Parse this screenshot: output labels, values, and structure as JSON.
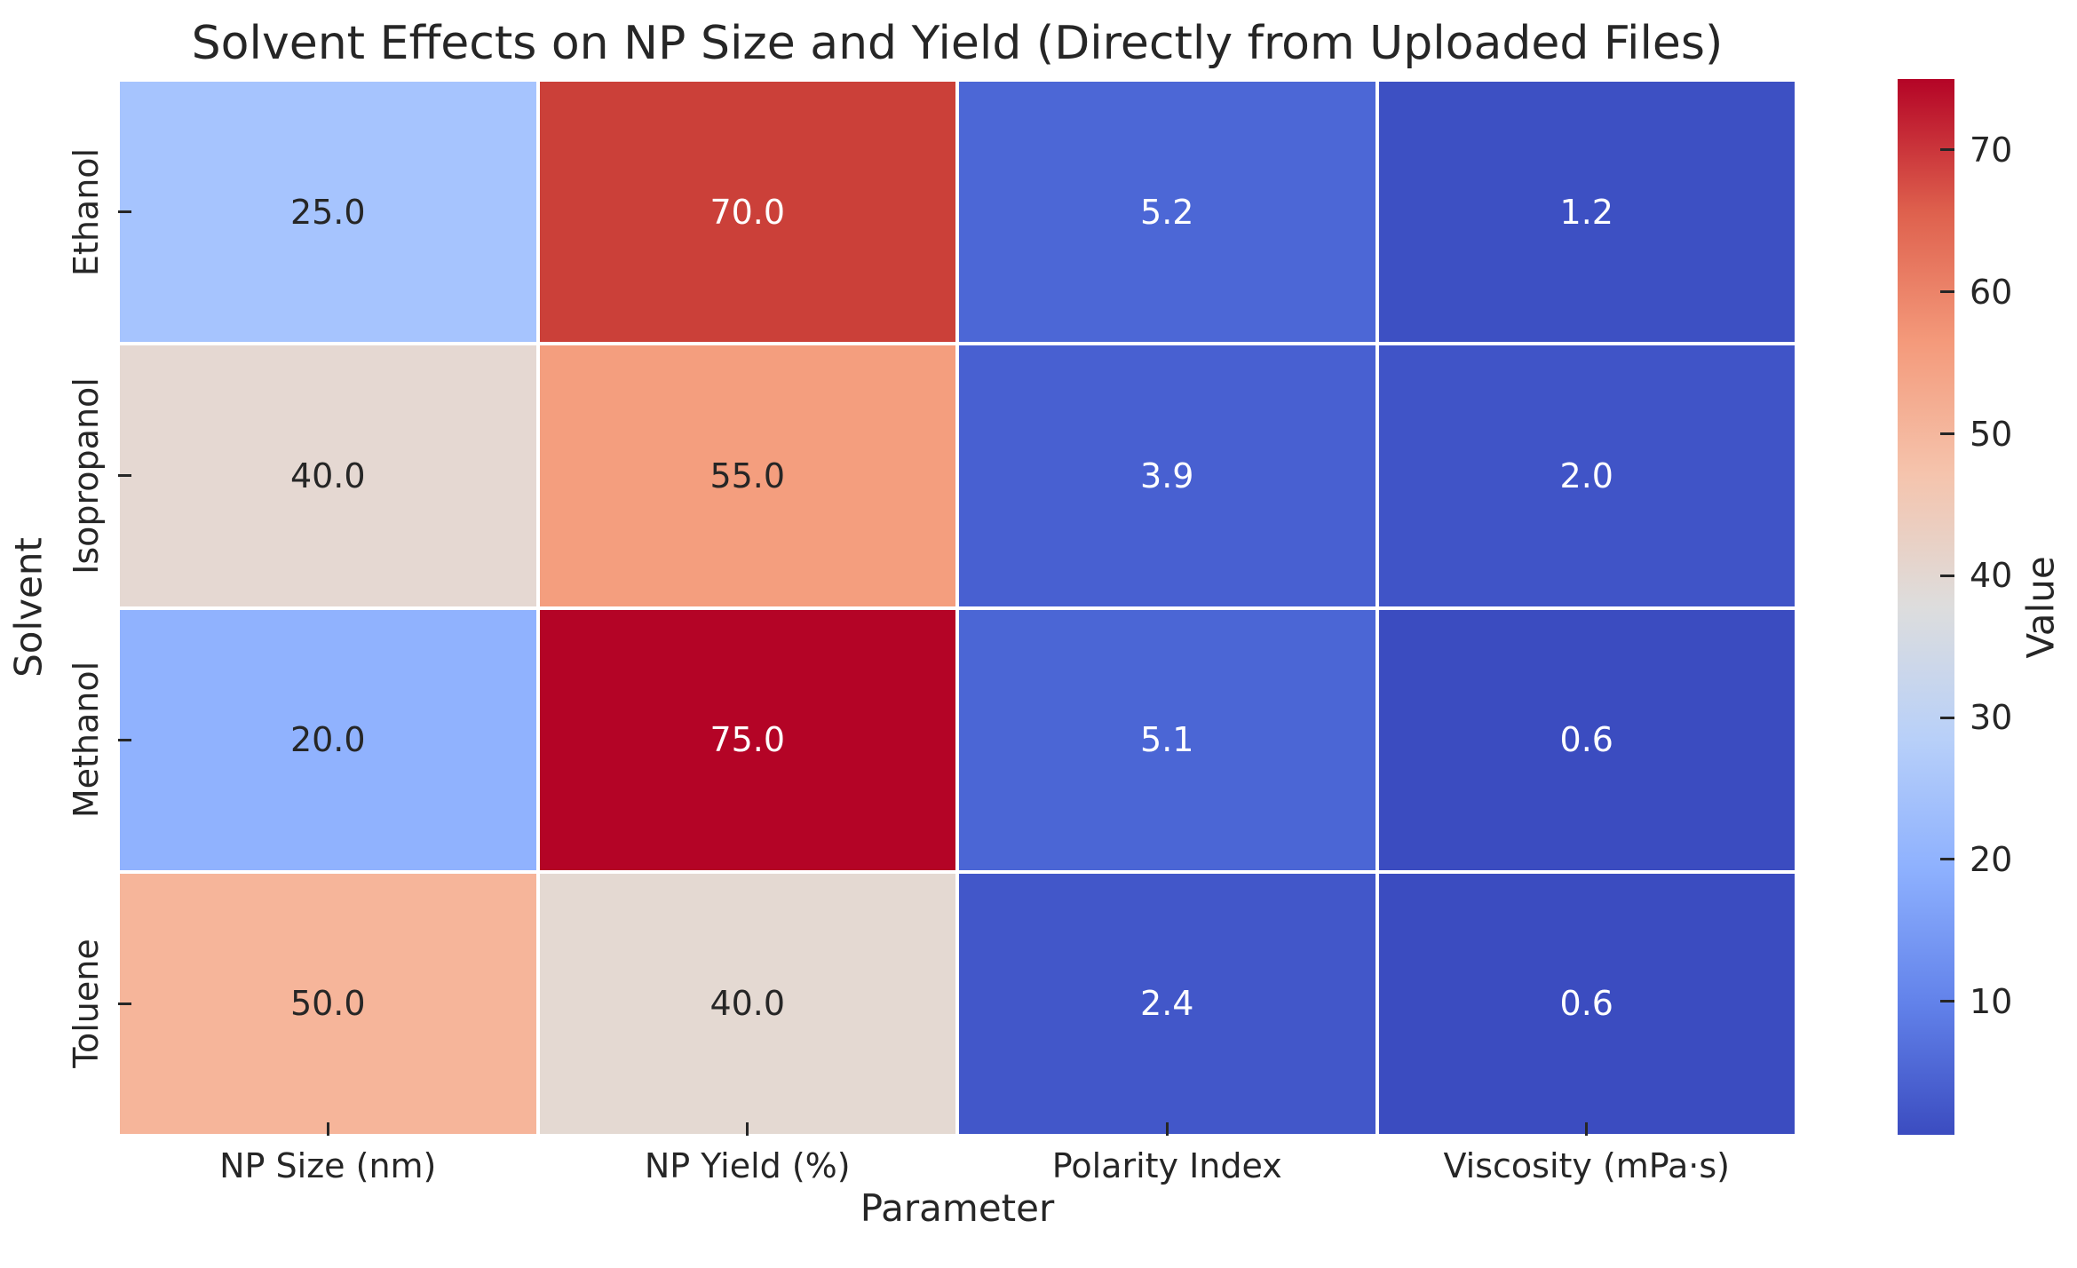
{
  "title": "Solvent Effects on NP Size and Yield (Directly from Uploaded Files)",
  "chart_data": {
    "type": "heatmap",
    "title": "Solvent Effects on NP Size and Yield (Directly from Uploaded Files)",
    "xlabel": "Parameter",
    "ylabel": "Solvent",
    "columns": [
      "NP Size (nm)",
      "NP Yield (%)",
      "Polarity Index",
      "Viscosity (mPa·s)"
    ],
    "rows": [
      "Ethanol",
      "Isopropanol",
      "Methanol",
      "Toluene"
    ],
    "values": [
      [
        25.0,
        70.0,
        5.2,
        1.2
      ],
      [
        40.0,
        55.0,
        3.9,
        2.0
      ],
      [
        20.0,
        75.0,
        5.1,
        0.6
      ],
      [
        50.0,
        40.0,
        2.4,
        0.6
      ]
    ],
    "cell_labels": [
      [
        "25.0",
        "70.0",
        "5.2",
        "1.2"
      ],
      [
        "40.0",
        "55.0",
        "3.9",
        "2.0"
      ],
      [
        "20.0",
        "75.0",
        "5.1",
        "0.6"
      ],
      [
        "50.0",
        "40.0",
        "2.4",
        "0.6"
      ]
    ],
    "cell_colors": [
      [
        "#a6c4fe",
        "#cb4039",
        "#4c67d6",
        "#3d50c3"
      ],
      [
        "#e5d8d2",
        "#f49e7e",
        "#4860d1",
        "#4054c7"
      ],
      [
        "#90b2fe",
        "#b40426",
        "#4b66d5",
        "#3b4cc0"
      ],
      [
        "#f6b59a",
        "#e4d9d2",
        "#4257c9",
        "#3b4cc0"
      ]
    ],
    "cell_text_colors": [
      [
        "#262626",
        "#ffffff",
        "#ffffff",
        "#ffffff"
      ],
      [
        "#262626",
        "#262626",
        "#ffffff",
        "#ffffff"
      ],
      [
        "#262626",
        "#ffffff",
        "#ffffff",
        "#ffffff"
      ],
      [
        "#262626",
        "#262626",
        "#ffffff",
        "#ffffff"
      ]
    ],
    "colormap": "coolwarm",
    "grid_color": "#ffffff",
    "text_color": "#262626",
    "colorbar": {
      "label": "Value",
      "ticks": [
        70,
        60,
        50,
        40,
        30,
        20,
        10
      ],
      "vmin": 0.6,
      "vmax": 75.0,
      "gradient_top_to_bottom": [
        "#b40426",
        "#de604d",
        "#f49a7b",
        "#f5c4ad",
        "#dddddd",
        "#b8d0f9",
        "#8db0fe",
        "#6282ea",
        "#3b4cc0"
      ]
    }
  }
}
